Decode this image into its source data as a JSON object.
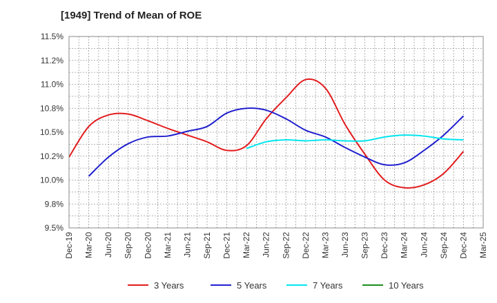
{
  "chart_data": {
    "type": "line",
    "title": "[1949]  Trend of Mean of ROE",
    "xlabel": "",
    "ylabel": "",
    "x": [
      "Dec-19",
      "Mar-20",
      "Jun-20",
      "Sep-20",
      "Dec-20",
      "Mar-21",
      "Jun-21",
      "Sep-21",
      "Dec-21",
      "Mar-22",
      "Jun-22",
      "Sep-22",
      "Dec-22",
      "Mar-23",
      "Jun-23",
      "Sep-23",
      "Dec-23",
      "Mar-24",
      "Jun-24",
      "Sep-24",
      "Dec-24",
      "Mar-25"
    ],
    "y_ticks": [
      "9.5%",
      "9.8%",
      "10.0%",
      "10.2%",
      "10.5%",
      "10.8%",
      "11.0%",
      "11.2%",
      "11.5%"
    ],
    "ylim": [
      9.5,
      11.5
    ],
    "grid": true,
    "legend_position": "bottom",
    "series": [
      {
        "name": "3 Years",
        "color": "#e31a1c",
        "values": [
          10.24,
          10.56,
          10.68,
          10.69,
          10.62,
          10.54,
          10.47,
          10.4,
          10.31,
          10.36,
          10.64,
          10.86,
          11.05,
          10.96,
          10.58,
          10.27,
          10.0,
          9.92,
          9.95,
          10.07,
          10.3,
          null
        ]
      },
      {
        "name": "5 Years",
        "color": "#1f1fcf",
        "values": [
          null,
          10.04,
          10.24,
          10.38,
          10.45,
          10.46,
          10.51,
          10.56,
          10.7,
          10.75,
          10.73,
          10.64,
          10.52,
          10.45,
          10.34,
          10.24,
          10.16,
          10.18,
          10.31,
          10.47,
          10.67,
          null
        ]
      },
      {
        "name": "7 Years",
        "color": "#00e5ee",
        "values": [
          null,
          null,
          null,
          null,
          null,
          null,
          null,
          null,
          null,
          10.33,
          10.4,
          10.42,
          10.41,
          10.42,
          10.41,
          10.41,
          10.45,
          10.47,
          10.46,
          10.43,
          10.42,
          null
        ]
      },
      {
        "name": "10 Years",
        "color": "#1a8c1a",
        "values": [
          null,
          null,
          null,
          null,
          null,
          null,
          null,
          null,
          null,
          null,
          null,
          null,
          null,
          null,
          null,
          null,
          null,
          null,
          null,
          null,
          null,
          null
        ]
      }
    ]
  }
}
